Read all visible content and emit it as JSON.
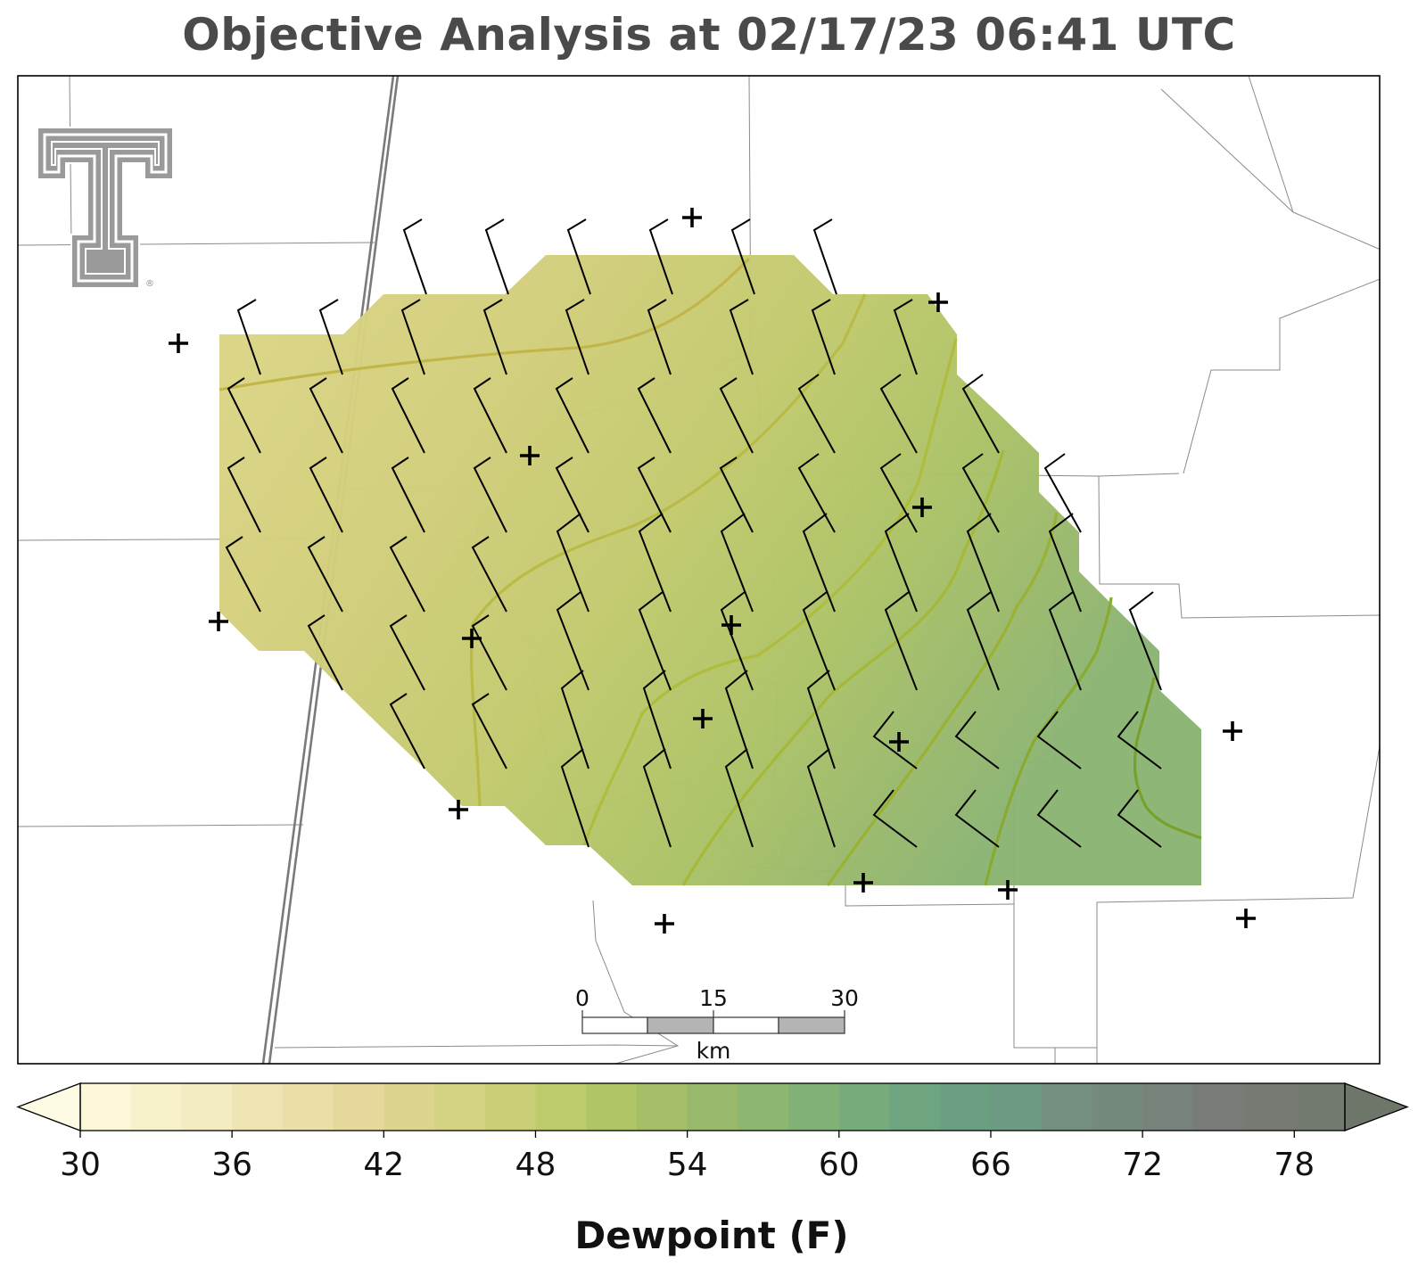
{
  "title": "Objective Analysis at 02/17/23 06:41 UTC",
  "colorbar": {
    "label": "Dewpoint (F)",
    "ticks": [
      "30",
      "36",
      "42",
      "48",
      "54",
      "60",
      "66",
      "72",
      "78"
    ],
    "min": 30,
    "max": 80,
    "step": 2,
    "extend": "both",
    "colors": [
      "#fcf8d8",
      "#f8f2cc",
      "#f3ebc1",
      "#efe4b3",
      "#ebdea7",
      "#e6d89d",
      "#ddd58f",
      "#d4d283",
      "#cacf77",
      "#bdcb6c",
      "#b0c565",
      "#a4bf67",
      "#98b96b",
      "#8db671",
      "#82b177",
      "#77ab7c",
      "#6ea47f",
      "#6a9f82",
      "#6d9a82",
      "#728f80",
      "#75897d",
      "#77827a",
      "#787c77",
      "#767a72",
      "#737a70"
    ],
    "under_color": "#fefbe4",
    "over_color": "#6e7669"
  },
  "scale_bar": {
    "labels": [
      "0",
      "15",
      "30"
    ],
    "unit": "km"
  },
  "logo": {
    "name": "texas-tech-double-t-logo",
    "mark": "®"
  },
  "field": {
    "variable": "Dewpoint",
    "units": "F",
    "range_in_domain": [
      43,
      58
    ]
  }
}
